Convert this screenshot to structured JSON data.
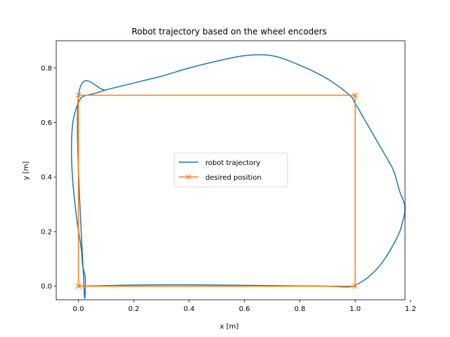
{
  "chart_data": {
    "type": "line",
    "title": "Robot trajectory based on the wheel encoders",
    "xlabel": "x [m]",
    "ylabel": "y [m]",
    "xlim": [
      -0.08,
      1.18
    ],
    "ylim": [
      -0.05,
      0.9
    ],
    "xticks": [
      0.0,
      0.2,
      0.4,
      0.6,
      0.8,
      1.0,
      1.2
    ],
    "xtick_labels": [
      "0.0",
      "0.2",
      "0.4",
      "0.6",
      "0.8",
      "1.0",
      "1.2"
    ],
    "yticks": [
      0.0,
      0.2,
      0.4,
      0.6,
      0.8
    ],
    "ytick_labels": [
      "0.0",
      "0.2",
      "0.4",
      "0.6",
      "0.8"
    ],
    "grid": false,
    "legend_position": "center",
    "series": [
      {
        "name": "robot trajectory",
        "color": "#1f77b4",
        "marker": "none",
        "x": [
          0.0,
          0.1,
          0.2,
          0.3,
          0.4,
          0.5,
          0.6,
          0.7,
          0.8,
          0.9,
          0.97,
          1.0,
          1.05,
          1.1,
          1.15,
          1.17,
          1.18,
          1.16,
          1.14,
          1.12,
          1.08,
          1.04,
          1.0,
          0.98,
          0.9,
          0.8,
          0.7,
          0.6,
          0.5,
          0.4,
          0.3,
          0.2,
          0.1,
          0.0,
          0.02,
          0.025,
          0.015,
          0.01,
          -0.005,
          -0.02,
          -0.025,
          -0.02,
          -0.005,
          0.01,
          0.03,
          0.06,
          0.1
        ],
        "y": [
          0.0,
          0.002,
          0.004,
          0.005,
          0.005,
          0.004,
          0.003,
          0.002,
          0.001,
          0.0,
          -0.003,
          0.003,
          0.035,
          0.09,
          0.175,
          0.23,
          0.29,
          0.35,
          0.42,
          0.46,
          0.53,
          0.6,
          0.67,
          0.7,
          0.76,
          0.81,
          0.845,
          0.845,
          0.825,
          0.8,
          0.77,
          0.745,
          0.72,
          0.695,
          0.0,
          0.03,
          0.08,
          0.14,
          0.24,
          0.38,
          0.5,
          0.6,
          0.66,
          0.69,
          0.7,
          0.707,
          0.72
        ]
      },
      {
        "name": "desired position",
        "color": "#ff7f0e",
        "marker": "x",
        "x": [
          0.0,
          1.0,
          1.0,
          0.0,
          0.0
        ],
        "y": [
          0.0,
          0.0,
          0.7,
          0.7,
          0.0
        ]
      }
    ]
  }
}
